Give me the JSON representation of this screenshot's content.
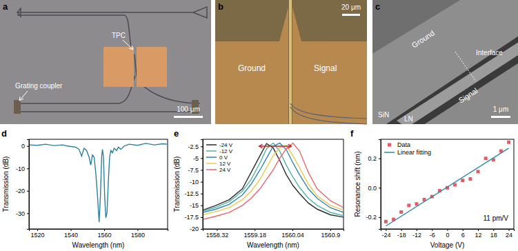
{
  "images": [
    {
      "panel_label": "a",
      "labels": [
        "Grating coupler",
        "TPC"
      ],
      "scale_bar": "100 μm"
    },
    {
      "panel_label": "b",
      "labels": [
        "Ground",
        "Signal"
      ],
      "scale_bar": "20 μm"
    },
    {
      "panel_label": "c",
      "labels": [
        "Ground",
        "Interface",
        "Signal",
        "SiN",
        "LN"
      ],
      "scale_bar": "1 μm"
    }
  ],
  "chart_data": [
    {
      "type": "line",
      "panel_label": "d",
      "x_label": "Wavelength (nm)",
      "y_label": "Transmission (dB)",
      "x": [
        1515,
        1520,
        1525,
        1530,
        1535,
        1538,
        1541,
        1543,
        1545,
        1546.5,
        1548,
        1549.5,
        1551,
        1552,
        1553,
        1554,
        1555,
        1556,
        1557,
        1557.8,
        1558.5,
        1559,
        1559.6,
        1560.3,
        1561,
        1561.7,
        1562.5,
        1563.3,
        1564,
        1565,
        1566,
        1567.5,
        1568.5,
        1570,
        1572,
        1575,
        1580,
        1585,
        1590,
        1595,
        1598
      ],
      "values": [
        0.5,
        0.3,
        0.8,
        0.2,
        0.5,
        0,
        -0.3,
        -0.5,
        -1.5,
        -4.5,
        -1,
        -2,
        -5,
        -8.5,
        -4,
        -5,
        -12,
        -22,
        -34,
        -22,
        -5,
        -1.5,
        -5,
        -22,
        -32,
        -30,
        -16,
        -5,
        -2,
        -3,
        -1,
        -2,
        -0.5,
        -1.5,
        0,
        0.8,
        0.3,
        1.2,
        0.5,
        1,
        0.8
      ],
      "color": "#2a7f9e",
      "xlim": [
        1515,
        1598
      ],
      "xticks": [
        1520,
        1540,
        1560,
        1580
      ],
      "ylim": [
        -37,
        3
      ],
      "yticks": [
        -30,
        -20,
        -10,
        0
      ]
    },
    {
      "type": "line",
      "panel_label": "e",
      "x_label": "Wavelength (nm)",
      "y_label": "Transmission (dB)",
      "x": [
        1558.0,
        1558.3,
        1558.6,
        1558.9,
        1559.1,
        1559.3,
        1559.45,
        1559.6,
        1559.75,
        1559.9,
        1560.05,
        1560.2,
        1560.4,
        1560.6,
        1560.9,
        1561.2
      ],
      "series": [
        {
          "name": "-24 V",
          "color": "#2b2b2b",
          "values": [
            -16,
            -15,
            -13.8,
            -11.5,
            -8,
            -4.5,
            -1.9,
            -2.8,
            -5.5,
            -8.5,
            -10.8,
            -12.5,
            -14.5,
            -15.8,
            -17,
            -17.5
          ]
        },
        {
          "name": "-12 V",
          "color": "#4fb3a9",
          "values": [
            -16.2,
            -15.4,
            -14.2,
            -12,
            -9.5,
            -6,
            -3,
            -1.8,
            -3.5,
            -6.5,
            -9,
            -11.2,
            -13.5,
            -15,
            -16.5,
            -17.2
          ]
        },
        {
          "name": "0 V",
          "color": "#2f86b0",
          "values": [
            -16.5,
            -15.8,
            -14.8,
            -12.8,
            -10.5,
            -7.5,
            -5,
            -2.5,
            -1.8,
            -3.2,
            -6,
            -8.5,
            -11.5,
            -13.5,
            -15.5,
            -16.5
          ]
        },
        {
          "name": "12 V",
          "color": "#ecc94b",
          "values": [
            -17,
            -16.3,
            -15.5,
            -13.8,
            -12,
            -9.5,
            -7,
            -4.5,
            -2.8,
            -2.3,
            -4.5,
            -7,
            -10.5,
            -13,
            -15,
            -16
          ]
        },
        {
          "name": "24 V",
          "color": "#ea6470",
          "values": [
            -18,
            -17.3,
            -16.5,
            -15,
            -13.5,
            -11.5,
            -9.5,
            -7.5,
            -5,
            -3,
            -1.8,
            -3.5,
            -8,
            -11.5,
            -14,
            -15.5
          ]
        }
      ],
      "legend": "upper left",
      "xlim": [
        1558.0,
        1561.2
      ],
      "xticks": [
        1558.32,
        1559.18,
        1560.04,
        1560.9
      ],
      "ylim": [
        -20,
        -1
      ],
      "yticks": [
        -20,
        -17.5,
        -15,
        -12.5,
        -10,
        -7.5,
        -5,
        -2.5
      ]
    },
    {
      "type": "scatter",
      "panel_label": "f",
      "x_label": "Voltage (V)",
      "y_label": "Resonance shift (nm)",
      "series": [
        {
          "name": "Data",
          "type": "scatter",
          "marker": "square",
          "color": "#ea5a66",
          "x": [
            -24,
            -21,
            -18,
            -15,
            -12,
            -9,
            -6,
            -3,
            0,
            3,
            6,
            9,
            12,
            15,
            18,
            21,
            24
          ],
          "values": [
            -0.23,
            -0.215,
            -0.165,
            -0.12,
            -0.11,
            -0.08,
            -0.06,
            -0.02,
            0,
            0.02,
            0.05,
            0.06,
            0.11,
            0.2,
            0.19,
            0.25,
            0.31
          ]
        },
        {
          "name": "Linear fitting",
          "type": "line",
          "color": "#2a8aa8",
          "x": [
            -24,
            24
          ],
          "values": [
            -0.26,
            0.27
          ]
        }
      ],
      "legend": "upper left",
      "annotation": "11 pm/V",
      "xlim": [
        -26,
        26
      ],
      "xticks": [
        -24,
        -18,
        -12,
        -6,
        0,
        6,
        12,
        18,
        24
      ],
      "ylim": [
        -0.28,
        0.33
      ],
      "yticks": [
        -0.2,
        {
          "value": 0,
          "label": "0.0"
        },
        0.2
      ]
    }
  ]
}
